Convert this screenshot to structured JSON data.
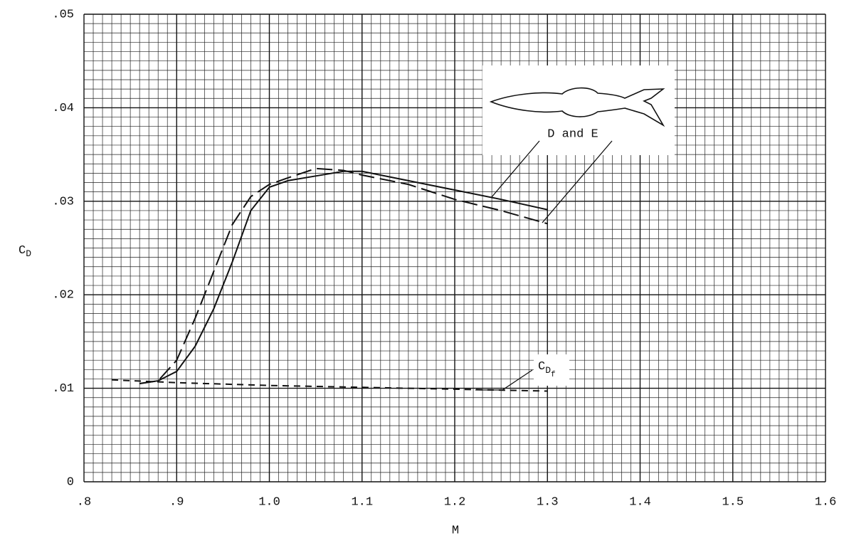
{
  "chart_data": {
    "type": "line",
    "xlabel": "M",
    "ylabel": {
      "text": "C",
      "sub": "D"
    },
    "xlim": [
      0.8,
      1.6
    ],
    "ylim": [
      0,
      0.05
    ],
    "xticks": [
      {
        "value": 0.8,
        "label": ".8"
      },
      {
        "value": 0.9,
        "label": ".9"
      },
      {
        "value": 1.0,
        "label": "1.0"
      },
      1.1,
      1.2,
      1.3,
      1.4,
      1.5,
      1.6
    ],
    "yticks": [
      {
        "value": 0,
        "label": "0"
      },
      {
        "value": 0.01,
        "label": ".01"
      },
      {
        "value": 0.02,
        "label": ".02"
      },
      {
        "value": 0.03,
        "label": ".03"
      },
      {
        "value": 0.04,
        "label": ".04"
      },
      {
        "value": 0.05,
        "label": ".05"
      }
    ],
    "grid": true,
    "minor_grid_divisions": 10,
    "series": [
      {
        "style": "solid",
        "color": "#111",
        "x": [
          0.86,
          0.88,
          0.9,
          0.92,
          0.94,
          0.96,
          0.98,
          1.0,
          1.02,
          1.05,
          1.08,
          1.1,
          1.15,
          1.2,
          1.25,
          1.3
        ],
        "values": [
          0.0105,
          0.0108,
          0.0118,
          0.0145,
          0.0185,
          0.0235,
          0.029,
          0.0315,
          0.0322,
          0.0327,
          0.0332,
          0.0332,
          0.0322,
          0.0312,
          0.0302,
          0.0291
        ]
      },
      {
        "style": "dashed",
        "color": "#111",
        "x": [
          0.86,
          0.88,
          0.9,
          0.92,
          0.94,
          0.96,
          0.98,
          1.0,
          1.02,
          1.05,
          1.08,
          1.1,
          1.15,
          1.2,
          1.25,
          1.3
        ],
        "values": [
          0.0105,
          0.0108,
          0.013,
          0.0175,
          0.0225,
          0.0275,
          0.0305,
          0.0318,
          0.0325,
          0.0335,
          0.0333,
          0.0328,
          0.0318,
          0.0302,
          0.029,
          0.0276
        ]
      },
      {
        "style": "short-dashed",
        "color": "#111",
        "x": [
          0.83,
          0.9,
          1.0,
          1.1,
          1.2,
          1.3
        ],
        "values": [
          0.0109,
          0.0106,
          0.0103,
          0.0101,
          0.0099,
          0.0097
        ]
      }
    ],
    "annotations": [
      {
        "text": "D and E"
      },
      {
        "text": "C",
        "sub": "D",
        "subsub": "f"
      }
    ]
  }
}
